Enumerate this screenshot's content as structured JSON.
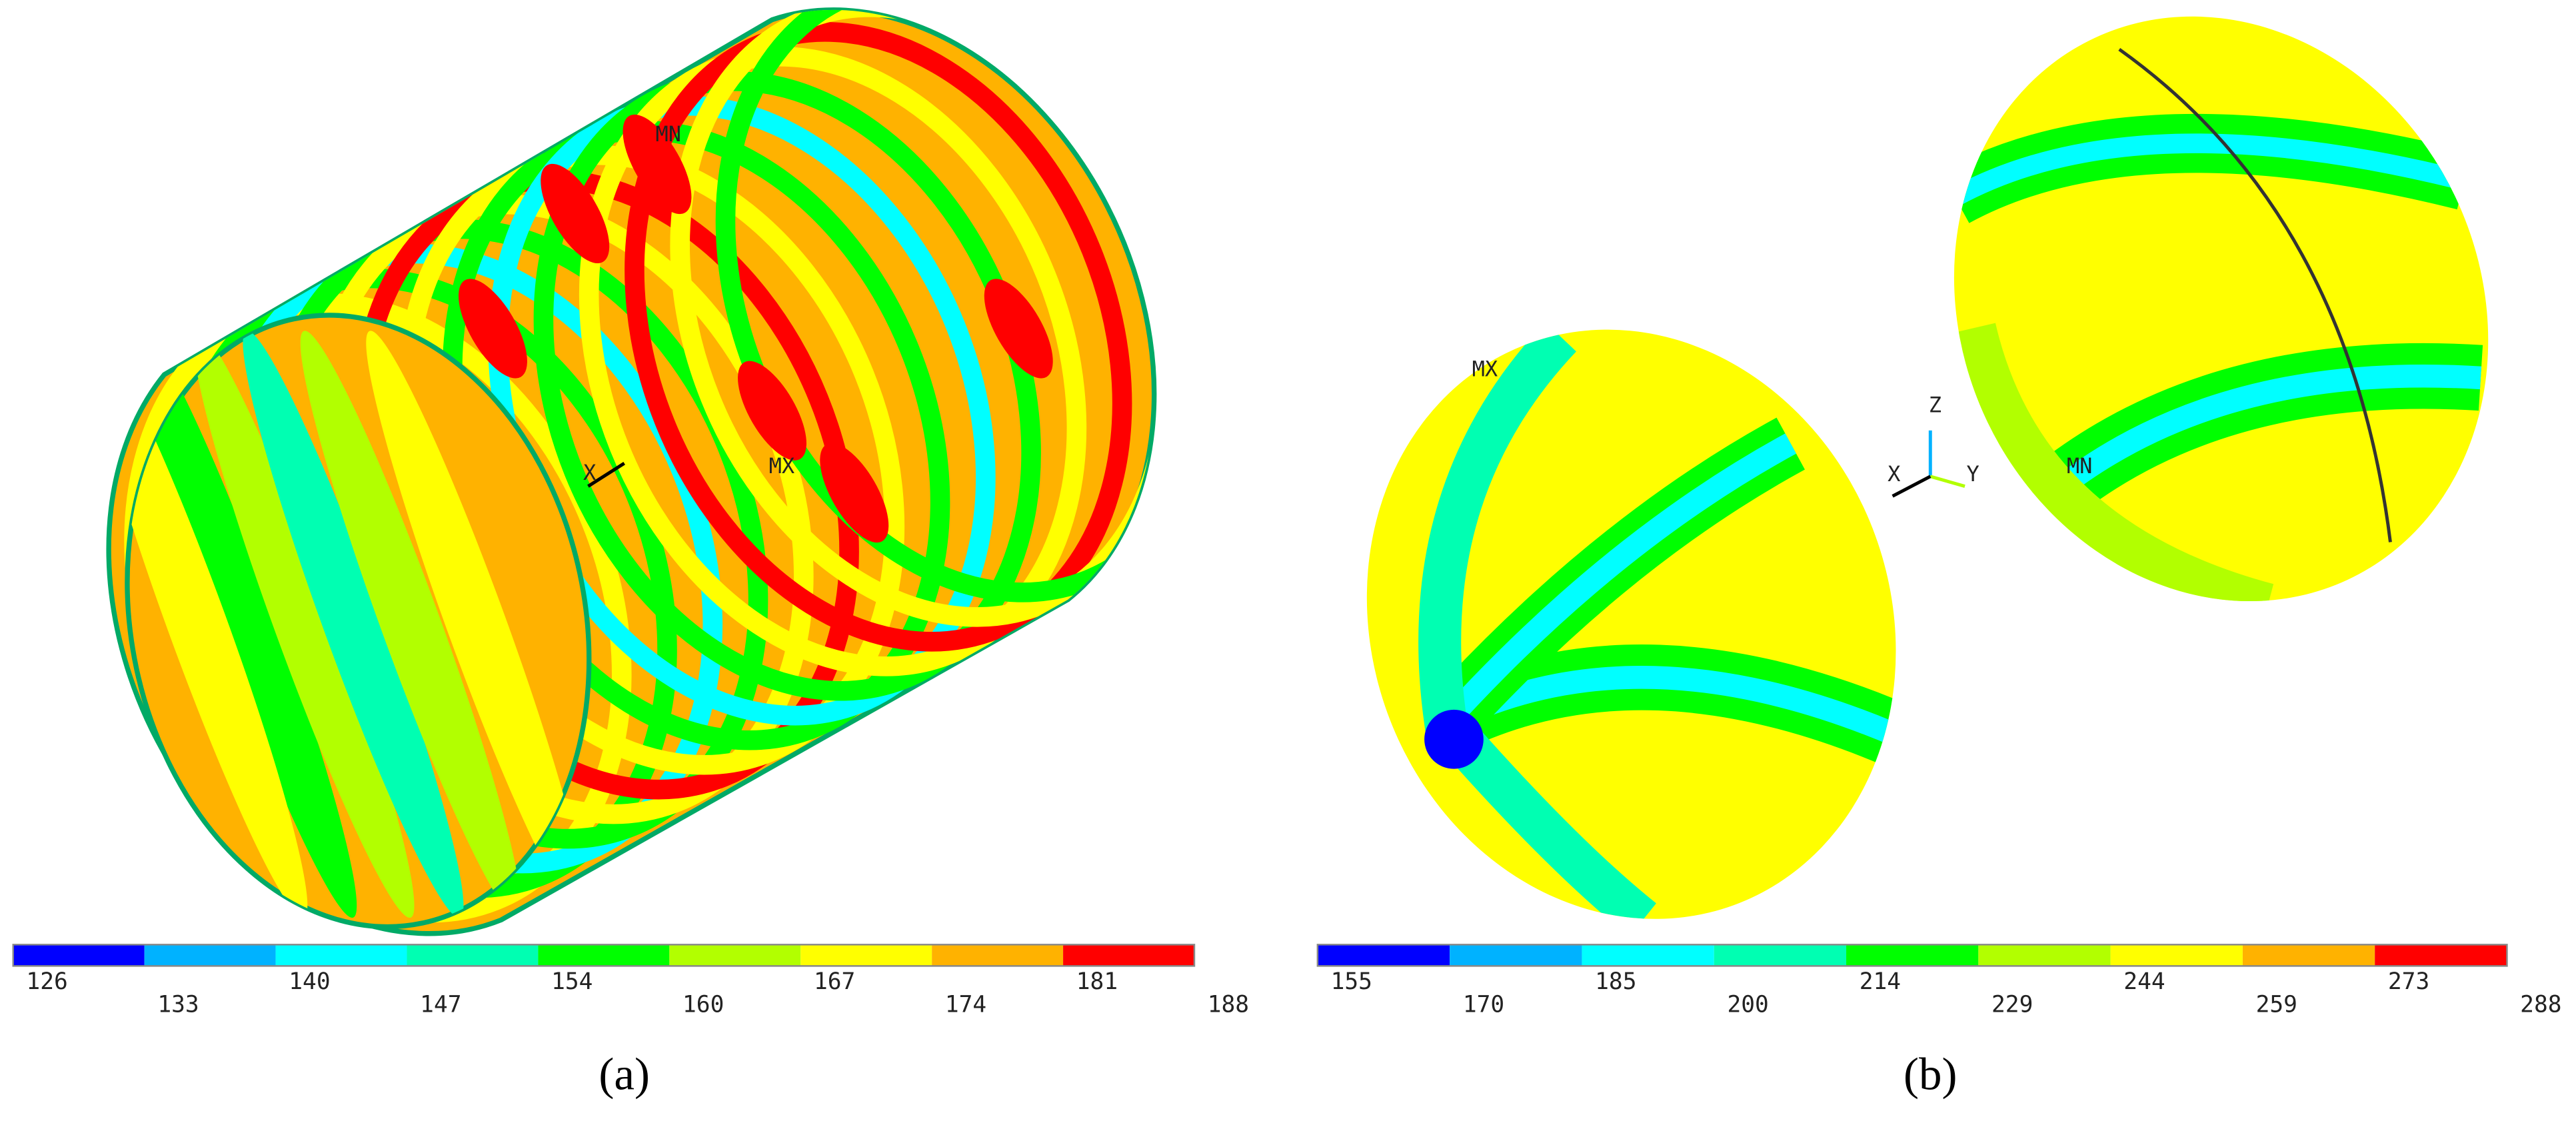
{
  "panels": [
    {
      "label": "(a)",
      "markers": [
        "MN",
        "MX",
        "X"
      ],
      "colorbar": {
        "ticks": [
          126,
          133,
          140,
          147,
          154,
          160,
          167,
          174,
          181,
          188
        ],
        "colors": [
          "#0000ff",
          "#00b2ff",
          "#00ffff",
          "#00ffb2",
          "#00ff00",
          "#b2ff00",
          "#ffff00",
          "#ffb200",
          "#ff0000"
        ]
      }
    },
    {
      "label": "(b)",
      "markers": [
        "MX",
        "MN",
        "Z",
        "X",
        "Y"
      ],
      "colorbar": {
        "ticks": [
          155,
          170,
          185,
          200,
          214,
          229,
          244,
          259,
          273,
          288
        ],
        "colors": [
          "#0000ff",
          "#00b2ff",
          "#00ffff",
          "#00ffb2",
          "#00ff00",
          "#b2ff00",
          "#ffff00",
          "#ffb200",
          "#ff0000"
        ]
      }
    }
  ]
}
